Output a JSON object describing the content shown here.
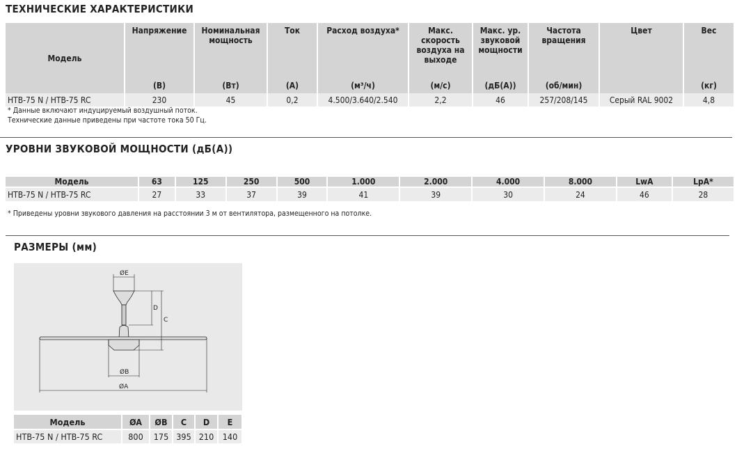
{
  "spec": {
    "title": "ТЕХНИЧЕСКИЕ ХАРАКТЕРИСТИКИ",
    "headers": [
      {
        "label": "Модель",
        "unit": ""
      },
      {
        "label": "Напряжение",
        "unit": "(В)"
      },
      {
        "label": "Номинальная мощность",
        "unit": "(Вт)"
      },
      {
        "label": "Ток",
        "unit": "(А)"
      },
      {
        "label": "Расход воздуха*",
        "unit": "(м³/ч)"
      },
      {
        "label": "Макс. скорость воздуха на выходе",
        "unit": "(м/с)"
      },
      {
        "label": "Макс. ур. звуковой мощности",
        "unit": "(дБ(А))"
      },
      {
        "label": "Частота вращения",
        "unit": "(об/мин)"
      },
      {
        "label": "Цвет",
        "unit": ""
      },
      {
        "label": "Вес",
        "unit": "(кг)"
      }
    ],
    "row": [
      "HTB-75 N / HTB-75 RC",
      "230",
      "45",
      "0,2",
      "4.500/3.640/2.540",
      "2,2",
      "46",
      "257/208/145",
      "Серый RAL 9002",
      "4,8"
    ],
    "notes": [
      "* Данные включают индуцируемый воздушный поток.",
      "Технические данные приведены при частоте тока 50 Гц."
    ]
  },
  "sound": {
    "title": "УРОВНИ ЗВУКОВОЙ МОЩНОСТИ (дБ(А))",
    "headers": [
      "Модель",
      "63",
      "125",
      "250",
      "500",
      "1.000",
      "2.000",
      "4.000",
      "8.000",
      "LwA",
      "LpA*"
    ],
    "row": [
      "HTB-75 N / HTB-75 RC",
      "27",
      "33",
      "37",
      "39",
      "41",
      "39",
      "30",
      "24",
      "46",
      "28"
    ],
    "note": "* Приведены уровни звукового давления на расстоянии 3 м от вентилятора, размещенного на потолке."
  },
  "dims": {
    "title": "РАЗМЕРЫ (мм)",
    "diagram_labels": {
      "E": "ØE",
      "D": "D",
      "C": "C",
      "B": "ØB",
      "A": "ØA"
    },
    "headers": [
      "Модель",
      "ØA",
      "ØB",
      "C",
      "D",
      "E"
    ],
    "row": [
      "HTB-75 N / HTB-75 RC",
      "800",
      "175",
      "395",
      "210",
      "140"
    ]
  }
}
